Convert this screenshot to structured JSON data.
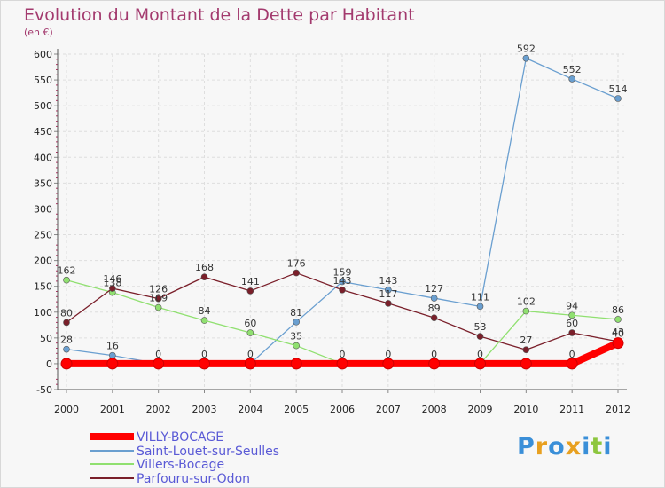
{
  "chart_data": {
    "type": "line",
    "title": "Evolution du Montant de la Dette par Habitant",
    "unit": "(en €)",
    "x": [
      "2000",
      "2001",
      "2002",
      "2003",
      "2004",
      "2005",
      "2006",
      "2007",
      "2008",
      "2009",
      "2010",
      "2011",
      "2012"
    ],
    "ylim": [
      -50,
      600
    ],
    "yticks": [
      -50,
      0,
      50,
      100,
      150,
      200,
      250,
      300,
      350,
      400,
      450,
      500,
      550,
      600
    ],
    "grid": true,
    "legend_position": "bottom-left",
    "series": [
      {
        "name": "VILLY-BOCAGE",
        "color": "#ff0000",
        "values": [
          0,
          0,
          0,
          0,
          0,
          0,
          0,
          0,
          0,
          0,
          0,
          0,
          40
        ],
        "labels": [
          "",
          "",
          "",
          "",
          "",
          "",
          "",
          "",
          "",
          "",
          "",
          "0",
          "40"
        ]
      },
      {
        "name": "Saint-Louet-sur-Seulles",
        "color": "#6a9fd0",
        "values": [
          28,
          16,
          0,
          0,
          0,
          81,
          159,
          143,
          127,
          111,
          592,
          552,
          514
        ],
        "labels": [
          "28",
          "16",
          "0",
          "0",
          "0",
          "81",
          "159",
          "143",
          "127",
          "111",
          "592",
          "552",
          "514"
        ]
      },
      {
        "name": "Villers-Bocage",
        "color": "#90e070",
        "values": [
          162,
          138,
          109,
          84,
          60,
          35,
          0,
          0,
          0,
          0,
          102,
          94,
          86
        ],
        "labels": [
          "162",
          "138",
          "109",
          "84",
          "60",
          "35",
          "0",
          "0",
          "0",
          "0",
          "102",
          "94",
          "86"
        ]
      },
      {
        "name": "Parfouru-sur-Odon",
        "color": "#7a1f2a",
        "values": [
          80,
          146,
          126,
          168,
          141,
          176,
          143,
          117,
          89,
          53,
          27,
          60,
          43
        ],
        "labels": [
          "80",
          "146",
          "126",
          "168",
          "141",
          "176",
          "143",
          "117",
          "89",
          "53",
          "27",
          "60",
          "43"
        ]
      }
    ]
  },
  "brand": {
    "letters": [
      "P",
      "r",
      "o",
      "x",
      "i",
      "t",
      "i"
    ],
    "colors": [
      "#3a8fd8",
      "#e8a020",
      "#3a8fd8",
      "#e8a020",
      "#3a8fd8",
      "#8dc63f",
      "#3a8fd8"
    ]
  }
}
